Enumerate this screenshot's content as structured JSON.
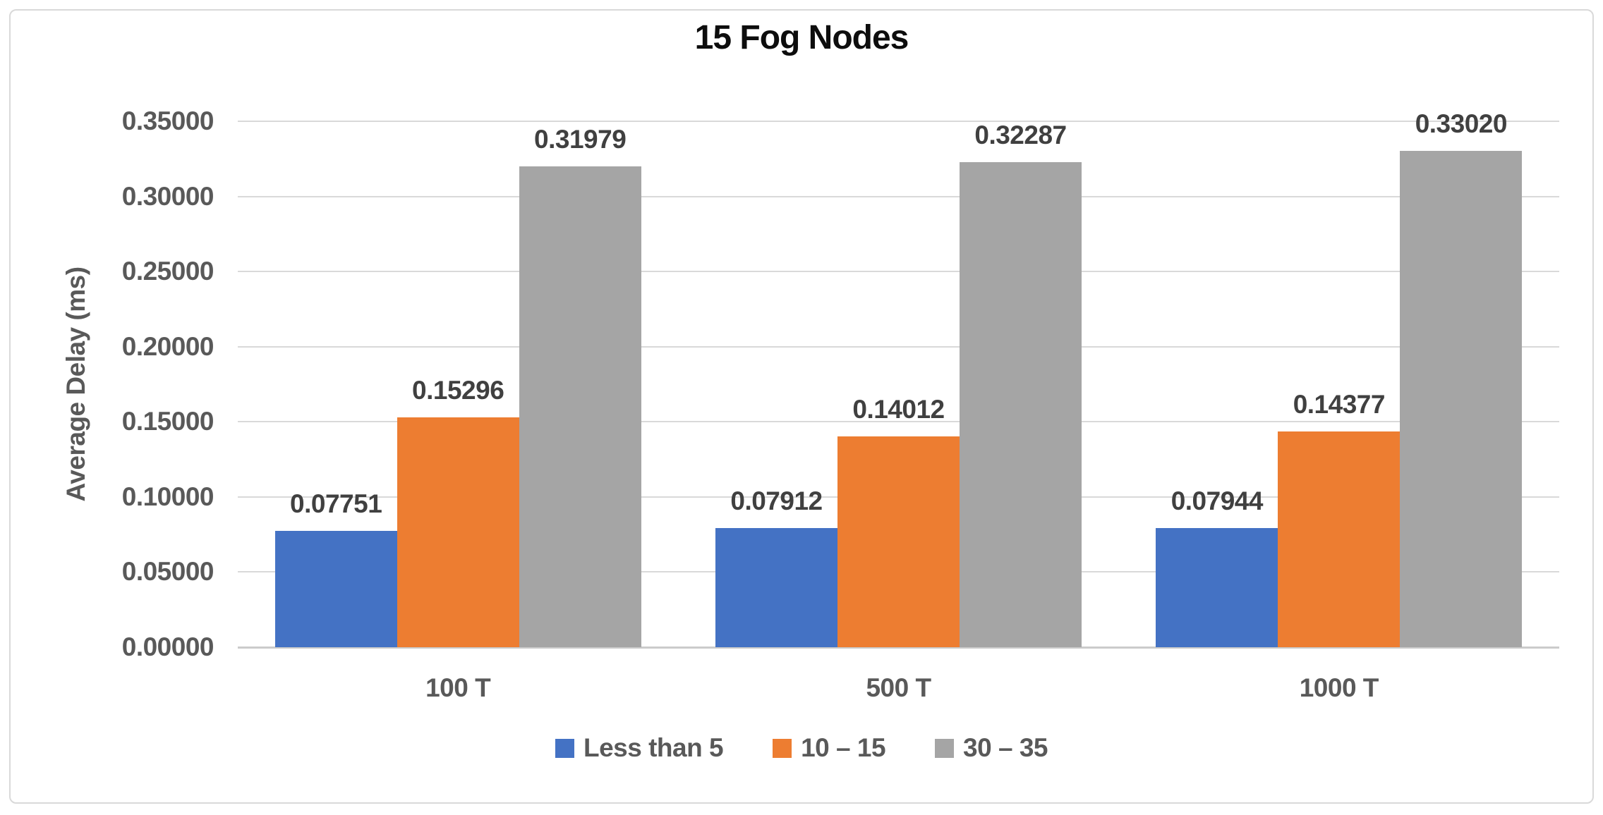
{
  "title": "15 Fog Nodes",
  "chart_data": {
    "type": "bar",
    "title": "15 Fog Nodes",
    "categories": [
      "100 T",
      "500 T",
      "1000 T"
    ],
    "series": [
      {
        "name": "Less than 5",
        "color": "#4472C4",
        "values": [
          0.07751,
          0.07912,
          0.07944
        ]
      },
      {
        "name": "10 – 15",
        "color": "#ED7D31",
        "values": [
          0.15296,
          0.14012,
          0.14377
        ]
      },
      {
        "name": "30 – 35",
        "color": "#A5A5A5",
        "values": [
          0.31979,
          0.32287,
          0.3302
        ]
      }
    ],
    "xlabel": "",
    "ylabel": "Average Delay (ms)",
    "ylim": [
      0,
      0.35
    ],
    "ytick_step": 0.05,
    "ytick_decimals": 5,
    "data_label_decimals": 5,
    "grid": true,
    "legend_position": "bottom"
  },
  "colors": {
    "background": "#FFFFFF",
    "frame_border": "#D9D9D9",
    "gridline": "#D9D9D9",
    "baseline": "#CBCBCB",
    "axis_text": "#595959",
    "data_label_text": "#404040",
    "title_text": "#0D0D0D"
  }
}
